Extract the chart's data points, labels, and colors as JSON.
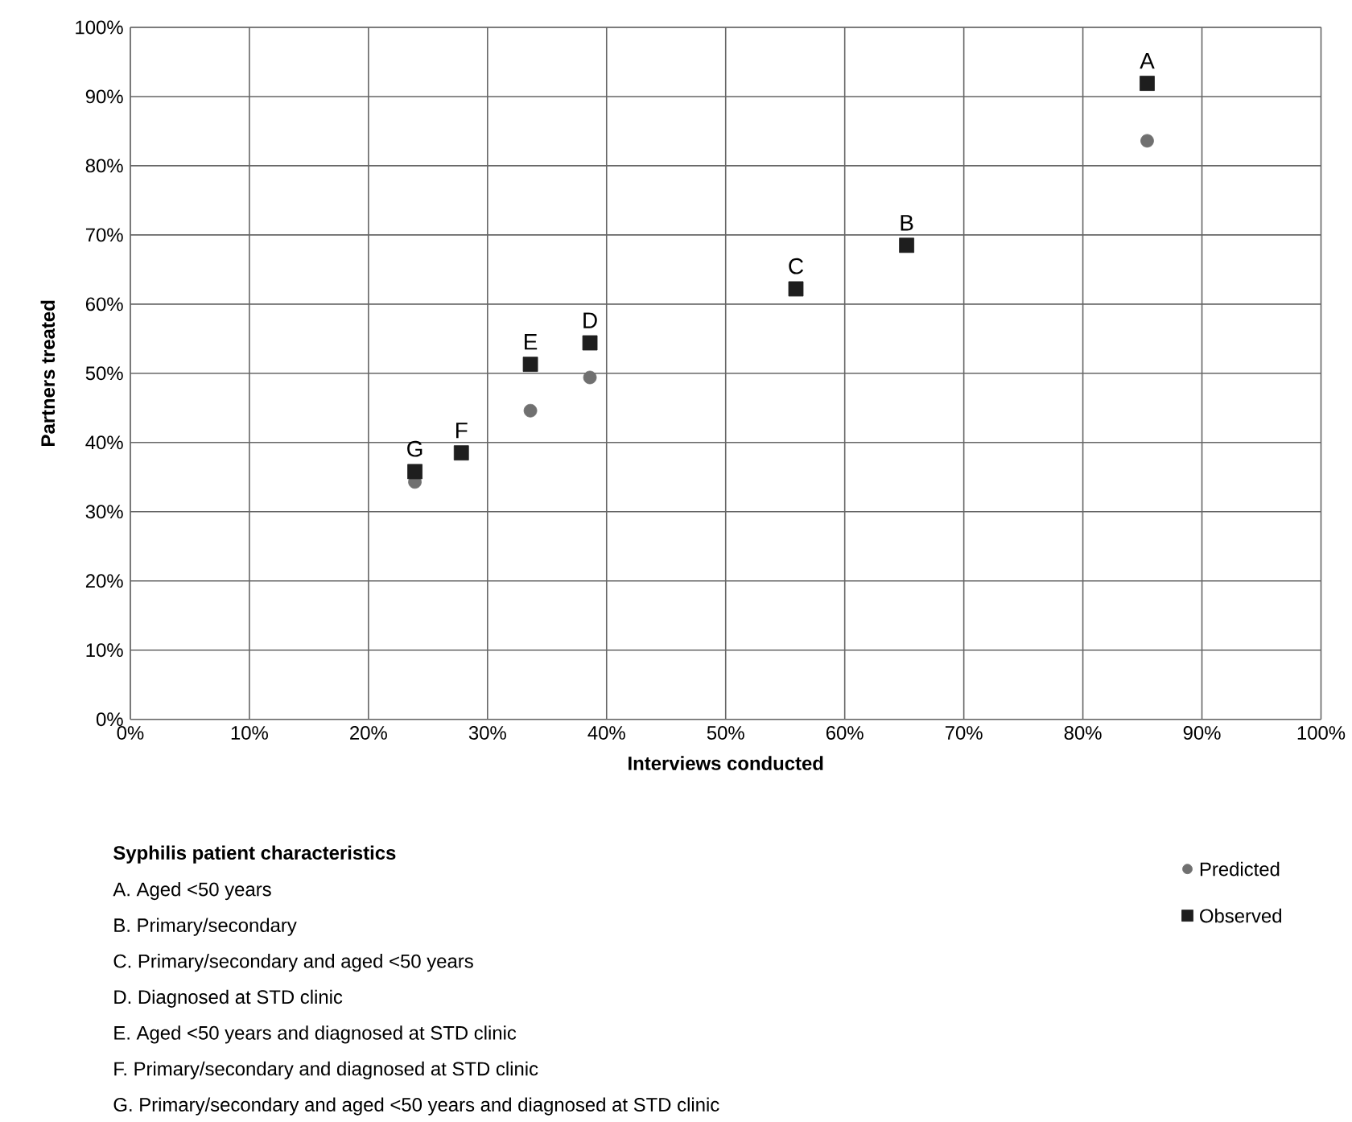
{
  "chart_data": {
    "type": "scatter",
    "xlabel": "Interviews conducted",
    "ylabel": "Partners treated",
    "xlim": [
      0,
      100
    ],
    "ylim": [
      0,
      100
    ],
    "xticks": [
      {
        "value": 0,
        "label": "0%"
      },
      {
        "value": 10,
        "label": "10%"
      },
      {
        "value": 20,
        "label": "20%"
      },
      {
        "value": 30,
        "label": "30%"
      },
      {
        "value": 40,
        "label": "40%"
      },
      {
        "value": 50,
        "label": "50%"
      },
      {
        "value": 60,
        "label": "60%"
      },
      {
        "value": 70,
        "label": "70%"
      },
      {
        "value": 80,
        "label": "80%"
      },
      {
        "value": 90,
        "label": "90%"
      },
      {
        "value": 100,
        "label": "100%"
      }
    ],
    "yticks": [
      {
        "value": 0,
        "label": "0%"
      },
      {
        "value": 10,
        "label": "10%"
      },
      {
        "value": 20,
        "label": "20%"
      },
      {
        "value": 30,
        "label": "30%"
      },
      {
        "value": 40,
        "label": "40%"
      },
      {
        "value": 50,
        "label": "50%"
      },
      {
        "value": 60,
        "label": "60%"
      },
      {
        "value": 70,
        "label": "70%"
      },
      {
        "value": 80,
        "label": "80%"
      },
      {
        "value": 90,
        "label": "90%"
      },
      {
        "value": 100,
        "label": "100%"
      }
    ],
    "grid": true,
    "legend": "bottom right",
    "series": [
      {
        "name": "Predicted",
        "color": "#707070",
        "marker": "circle",
        "x": [
          85.4,
          65.2,
          55.9,
          38.6,
          33.6,
          27.8,
          23.9
        ],
        "values": [
          83.6,
          null,
          null,
          49.4,
          44.6,
          null,
          34.3
        ]
      },
      {
        "name": "Observed",
        "color": "#1e1e1e",
        "marker": "square",
        "x": [
          85.4,
          65.2,
          55.9,
          38.6,
          33.6,
          27.8,
          23.9
        ],
        "values": [
          91.9,
          68.5,
          62.2,
          54.4,
          51.3,
          38.5,
          35.8
        ]
      }
    ],
    "annotations": [
      {
        "text": "A",
        "x": 85.4,
        "y": 91.9
      },
      {
        "text": "B",
        "x": 65.2,
        "y": 68.5
      },
      {
        "text": "C",
        "x": 55.9,
        "y": 62.2
      },
      {
        "text": "D",
        "x": 38.6,
        "y": 54.4
      },
      {
        "text": "E",
        "x": 33.6,
        "y": 51.3
      },
      {
        "text": "F",
        "x": 27.8,
        "y": 38.5
      },
      {
        "text": "G",
        "x": 23.9,
        "y": 35.8
      },
      "Syphilis patient characteristics",
      "A. Aged <50 years",
      "B. Primary/secondary",
      "C. Primary/secondary and aged <50 years",
      "D. Diagnosed at STD clinic",
      "E. Aged <50 years and diagnosed at STD clinic",
      "F. Primary/secondary and diagnosed at STD clinic",
      "G. Primary/secondary and aged <50 years and diagnosed at STD clinic"
    ]
  }
}
